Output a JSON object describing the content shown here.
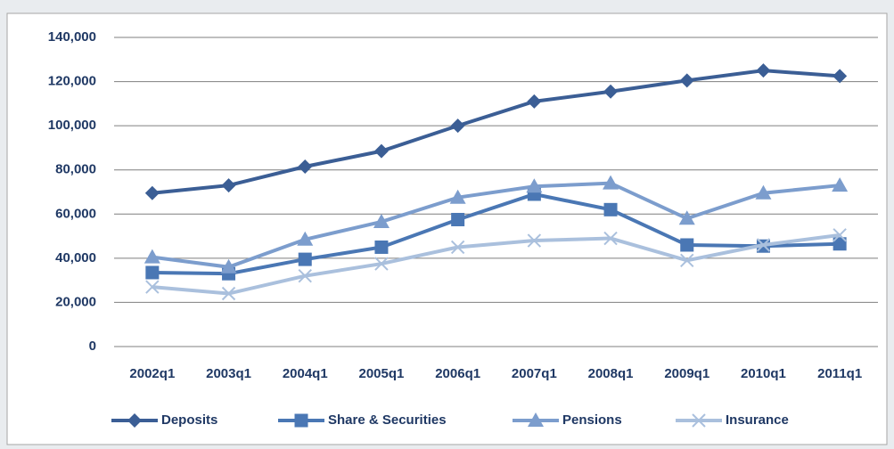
{
  "chart_data": {
    "type": "line",
    "categories": [
      "2002q1",
      "2003q1",
      "2004q1",
      "2005q1",
      "2006q1",
      "2007q1",
      "2008q1",
      "2009q1",
      "2010q1",
      "2011q1"
    ],
    "series": [
      {
        "name": "Deposits",
        "color": "#3b5e95",
        "marker": "diamond",
        "values": [
          69500,
          73000,
          81500,
          88500,
          100000,
          111000,
          115500,
          120500,
          125000,
          122500
        ]
      },
      {
        "name": "Share & Securities",
        "color": "#4a77b4",
        "marker": "square",
        "values": [
          33500,
          33000,
          39500,
          45000,
          57500,
          69000,
          62000,
          46000,
          45500,
          46500
        ]
      },
      {
        "name": "Pensions",
        "color": "#7c9dcd",
        "marker": "triangle",
        "values": [
          40500,
          36000,
          48500,
          56500,
          67500,
          72500,
          74000,
          58000,
          69500,
          73000
        ]
      },
      {
        "name": "Insurance",
        "color": "#aac0dd",
        "marker": "x",
        "values": [
          27000,
          24000,
          32000,
          37500,
          45000,
          48000,
          49000,
          39000,
          46000,
          50500
        ]
      }
    ],
    "ylim": [
      0,
      140000
    ],
    "yticks": [
      0,
      {
        "value": 20000,
        "label": "20,000"
      },
      {
        "value": 40000,
        "label": "40,000"
      },
      {
        "value": 60000,
        "label": "60,000"
      },
      {
        "value": 80000,
        "label": "80,000"
      },
      {
        "value": 100000,
        "label": "100,000"
      },
      {
        "value": 120000,
        "label": "120,000"
      },
      {
        "value": 140000,
        "label": "140,000"
      }
    ],
    "grid": true,
    "legend": "bottom"
  }
}
